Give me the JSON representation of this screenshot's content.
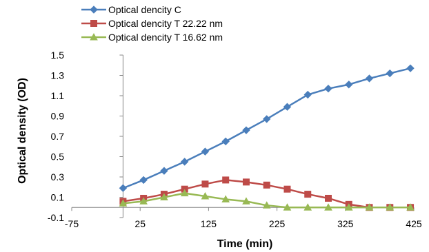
{
  "chart_data": {
    "type": "line",
    "xlabel": "Time (min)",
    "ylabel": "Optical density (OD)",
    "xlim": [
      -75,
      425
    ],
    "ylim": [
      -0.1,
      1.5
    ],
    "xticks": [
      "-75",
      "25",
      "125",
      "225",
      "325",
      "425"
    ],
    "yticks": [
      "-0.1",
      "0.1",
      "0.3",
      "0.5",
      "0.7",
      "0.9",
      "1.1",
      "1.3",
      "1.5"
    ],
    "grid": false,
    "legend_position": "top-left",
    "series": [
      {
        "name": "Optical dencity C",
        "color": "#4a7ebb",
        "marker": "diamond",
        "x": [
          0,
          30,
          60,
          90,
          120,
          150,
          180,
          210,
          240,
          270,
          300,
          330,
          360,
          390,
          420
        ],
        "y": [
          0.19,
          0.27,
          0.36,
          0.45,
          0.55,
          0.65,
          0.76,
          0.87,
          0.99,
          1.11,
          1.17,
          1.21,
          1.27,
          1.32,
          1.37
        ]
      },
      {
        "name": "Optical dencity T 22.22 nm",
        "color": "#be4b48",
        "marker": "square",
        "x": [
          0,
          30,
          60,
          90,
          120,
          150,
          180,
          210,
          240,
          270,
          300,
          330,
          360,
          390,
          420
        ],
        "y": [
          0.06,
          0.09,
          0.13,
          0.18,
          0.23,
          0.27,
          0.25,
          0.22,
          0.18,
          0.13,
          0.09,
          0.03,
          0.0,
          0.0,
          0.0
        ]
      },
      {
        "name": "Optical dencity T 16.62 nm",
        "color": "#98b954",
        "marker": "triangle",
        "x": [
          0,
          30,
          60,
          90,
          120,
          150,
          180,
          210,
          240,
          270,
          300,
          330,
          360,
          390,
          420
        ],
        "y": [
          0.04,
          0.06,
          0.1,
          0.14,
          0.11,
          0.08,
          0.06,
          0.02,
          0.0,
          0.0,
          0.0,
          0.0,
          0.0,
          0.0,
          0.0
        ]
      }
    ]
  }
}
